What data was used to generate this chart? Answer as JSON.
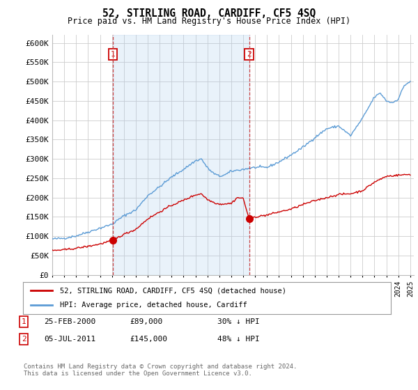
{
  "title": "52, STIRLING ROAD, CARDIFF, CF5 4SQ",
  "subtitle": "Price paid vs. HM Land Registry's House Price Index (HPI)",
  "ylim": [
    0,
    620000
  ],
  "yticks": [
    0,
    50000,
    100000,
    150000,
    200000,
    250000,
    300000,
    350000,
    400000,
    450000,
    500000,
    550000,
    600000
  ],
  "sale1_date": "25-FEB-2000",
  "sale1_price": 89000,
  "sale1_label": "1",
  "sale1_hpi_diff": "30% ↓ HPI",
  "sale1_year": 2000.08,
  "sale2_date": "05-JUL-2011",
  "sale2_price": 145000,
  "sale2_label": "2",
  "sale2_hpi_diff": "48% ↓ HPI",
  "sale2_year": 2011.5,
  "legend_red": "52, STIRLING ROAD, CARDIFF, CF5 4SQ (detached house)",
  "legend_blue": "HPI: Average price, detached house, Cardiff",
  "footer": "Contains HM Land Registry data © Crown copyright and database right 2024.\nThis data is licensed under the Open Government Licence v3.0.",
  "red_color": "#cc0000",
  "blue_color": "#5b9bd5",
  "shade_color": "#ddeeff",
  "vline_color": "#cc4444",
  "background_color": "#ffffff",
  "grid_color": "#cccccc",
  "hpi_knots_x": [
    1995,
    1996,
    1997,
    1998,
    1999,
    2000,
    2001,
    2002,
    2003,
    2004,
    2005,
    2006,
    2007,
    2007.5,
    2008,
    2008.5,
    2009,
    2009.5,
    2010,
    2011,
    2012,
    2013,
    2014,
    2015,
    2016,
    2017,
    2018,
    2019,
    2020,
    2021,
    2022,
    2022.5,
    2023,
    2023.5,
    2024,
    2024.5,
    2025
  ],
  "hpi_knots_y": [
    93000,
    95000,
    101000,
    111000,
    121000,
    131000,
    153000,
    168000,
    205000,
    228000,
    253000,
    273000,
    295000,
    300000,
    277000,
    263000,
    255000,
    259000,
    268000,
    273000,
    278000,
    278000,
    292000,
    310000,
    330000,
    355000,
    378000,
    385000,
    360000,
    405000,
    460000,
    470000,
    450000,
    445000,
    455000,
    490000,
    500000
  ],
  "prop_knots_x": [
    1995,
    1996,
    1997,
    1998,
    1999,
    2000,
    2001,
    2002,
    2003,
    2004,
    2005,
    2006,
    2007,
    2007.5,
    2008,
    2008.5,
    2009,
    2010,
    2010.5,
    2011,
    2011.5,
    2012,
    2013,
    2014,
    2015,
    2016,
    2017,
    2018,
    2019,
    2020,
    2021,
    2022,
    2023,
    2024,
    2025
  ],
  "prop_knots_y": [
    63000,
    65000,
    69000,
    74000,
    80000,
    89000,
    105000,
    118000,
    145000,
    163000,
    180000,
    193000,
    207000,
    210000,
    195000,
    188000,
    183000,
    185000,
    200000,
    198000,
    145000,
    150000,
    155000,
    163000,
    170000,
    182000,
    192000,
    200000,
    208000,
    210000,
    218000,
    240000,
    255000,
    258000,
    260000
  ]
}
